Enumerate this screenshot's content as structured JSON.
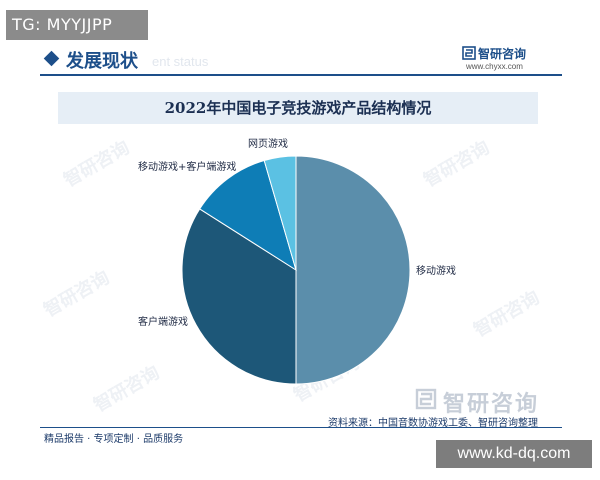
{
  "overlay_tag": "TG: MYYJJPP",
  "section": {
    "title": "发展现状",
    "watermark_text": "ent status"
  },
  "brand": {
    "name": "智研咨询",
    "url": "www.chyxx.com"
  },
  "chart_data": {
    "type": "pie",
    "title": "2022年中国电子竞技游戏产品结构情况",
    "slices": [
      {
        "label": "移动游戏",
        "value": 50.0,
        "color": "#5b8eab"
      },
      {
        "label": "客户端游戏",
        "value": 34.0,
        "color": "#1d5778"
      },
      {
        "label": "移动游戏+客户端游戏",
        "value": 11.5,
        "color": "#0e7db6"
      },
      {
        "label": "网页游戏",
        "value": 4.5,
        "color": "#5bc1e3"
      }
    ],
    "start_angle": "12 o'clock",
    "direction": "clockwise",
    "legend": "none (direct labels)"
  },
  "watermarks": [
    "智研咨询",
    "智研咨询",
    "智研咨询",
    "智研咨询",
    "智研咨询",
    "智研咨询"
  ],
  "footer": {
    "source": "资料来源：中国音数协游戏工委、智研咨询整理",
    "tagline": "精品报告 · 专项定制 · 品质服务",
    "logo_text": "智研咨询"
  },
  "site_badge": "www.kd-dq.com"
}
